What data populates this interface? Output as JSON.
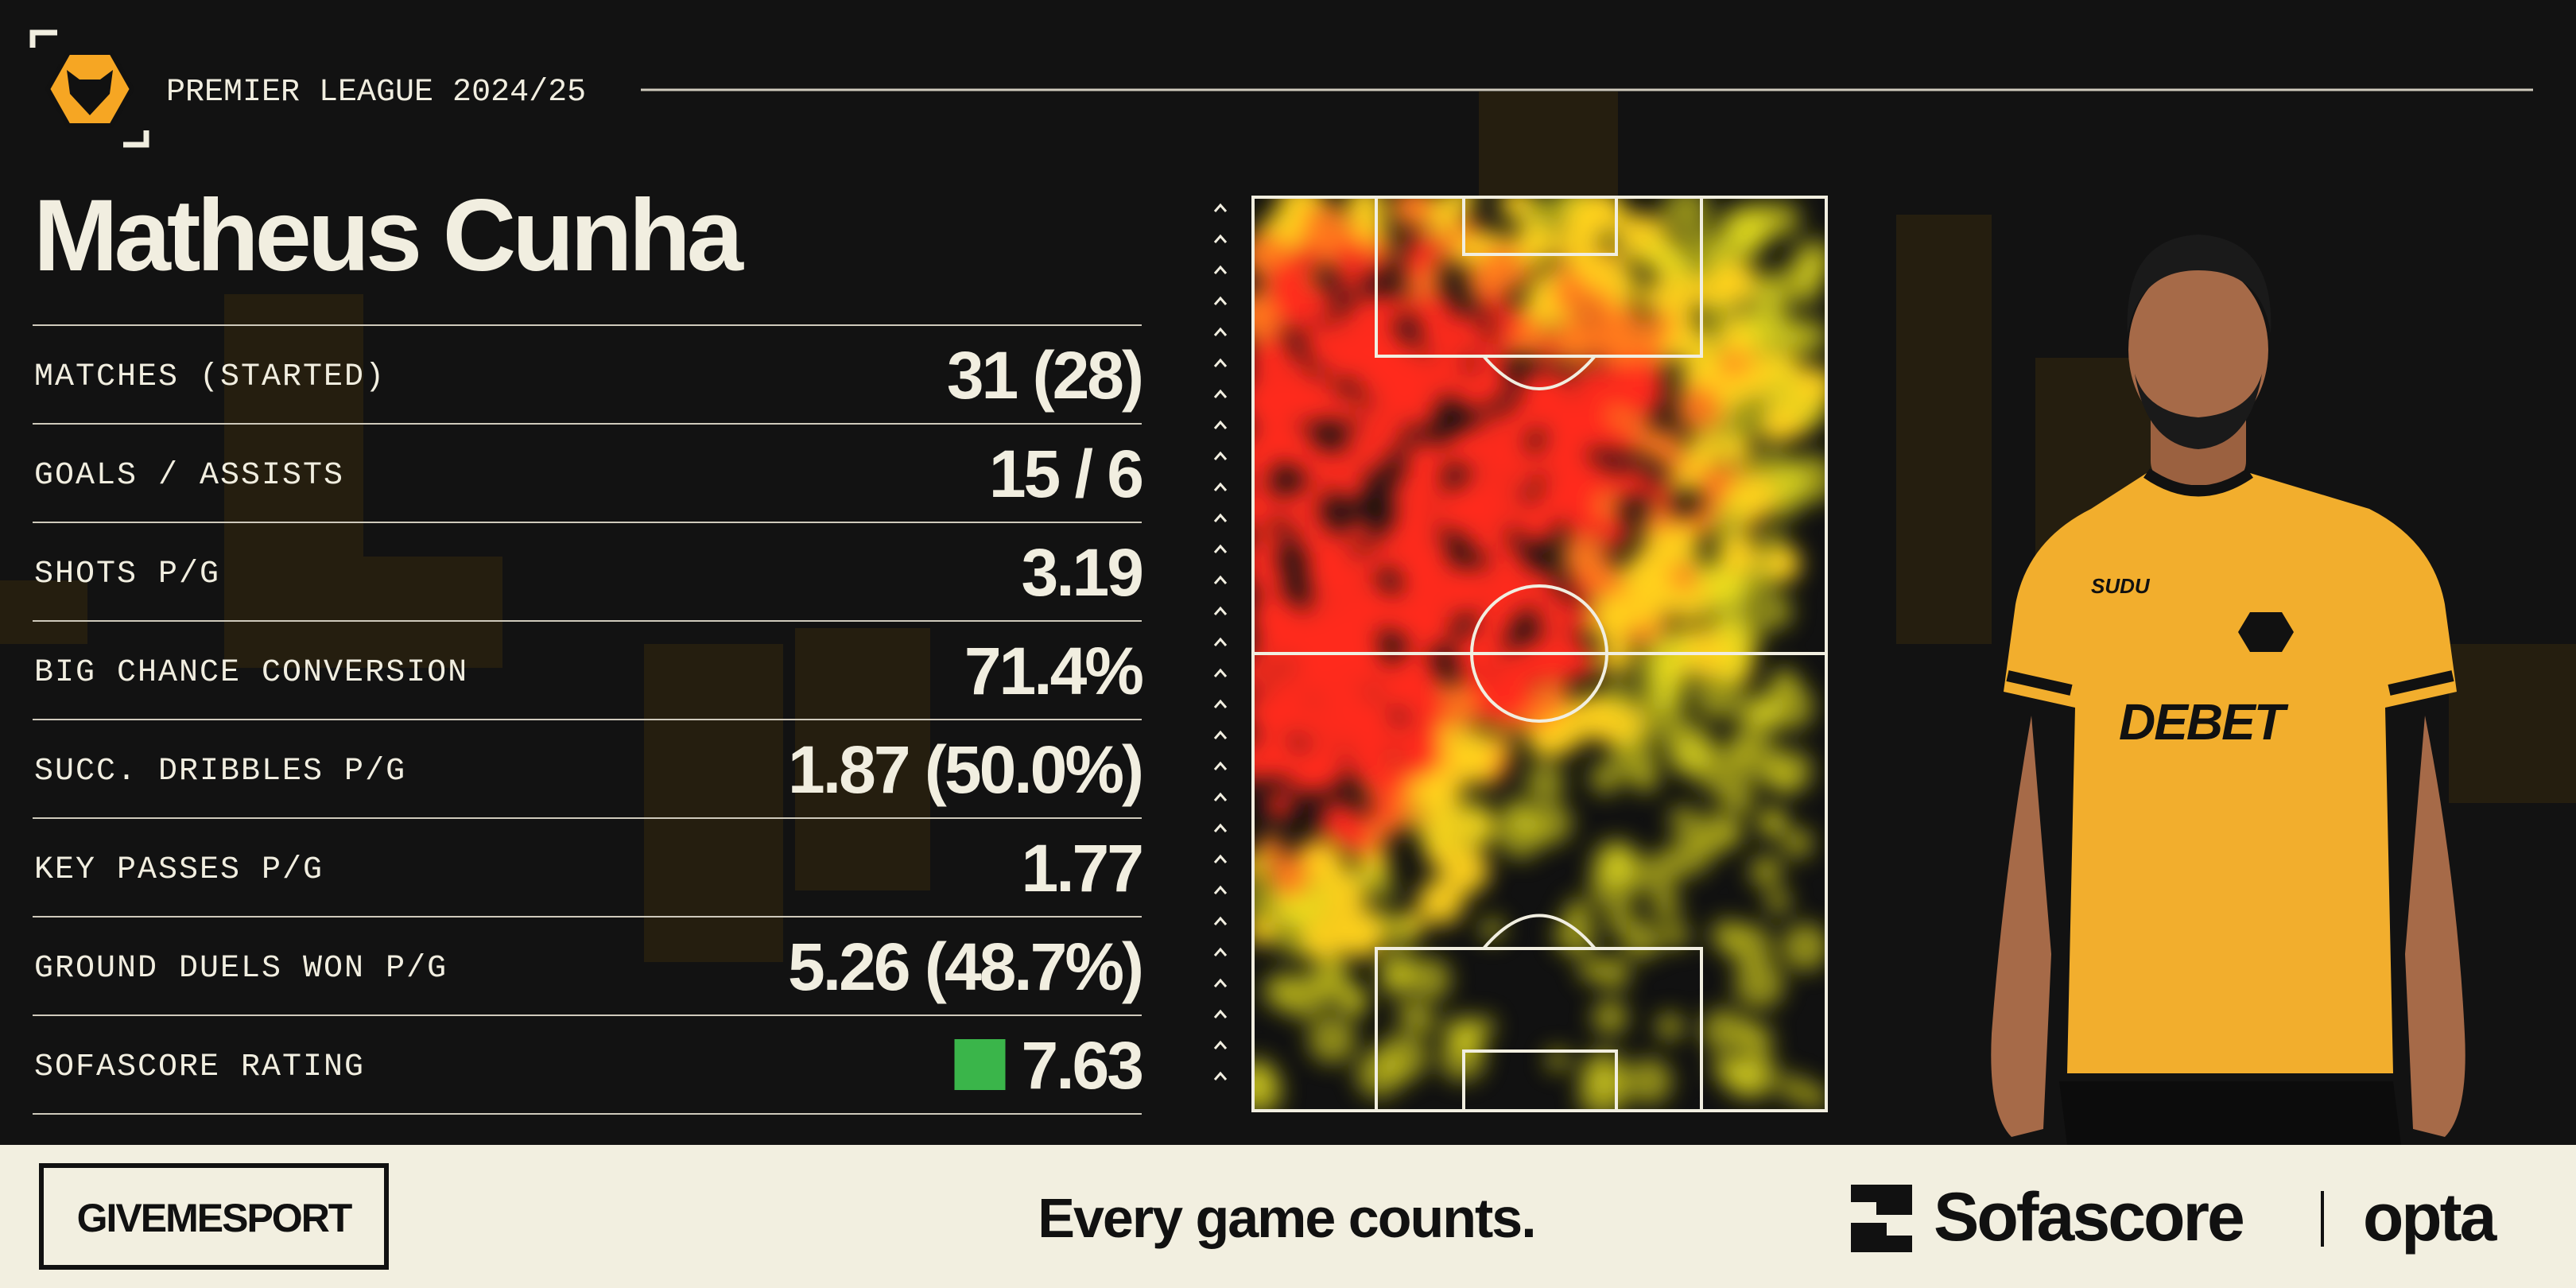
{
  "header": {
    "league": "PREMIER LEAGUE 2024/25"
  },
  "player": {
    "name": "Matheus Cunha"
  },
  "stats": [
    {
      "label": "MATCHES (STARTED)",
      "value": "31 (28)"
    },
    {
      "label": "GOALS / ASSISTS",
      "value": "15 / 6"
    },
    {
      "label": "SHOTS P/G",
      "value": "3.19"
    },
    {
      "label": "BIG CHANCE CONVERSION",
      "value": "71.4%"
    },
    {
      "label": "SUCC. DRIBBLES P/G",
      "value": "1.87 (50.0%)"
    },
    {
      "label": "KEY PASSES P/G",
      "value": "1.77"
    },
    {
      "label": "GROUND DUELS WON P/G",
      "value": "5.26 (48.7%)"
    },
    {
      "label": "SOFASCORE RATING",
      "value": "7.63"
    }
  ],
  "shirt": {
    "maker": "SUDU",
    "sponsor": "DEBET"
  },
  "footer": {
    "brand": "GIVEMESPORT",
    "tagline": "Every game counts.",
    "partner": "Sofascore",
    "provider": "opta"
  }
}
